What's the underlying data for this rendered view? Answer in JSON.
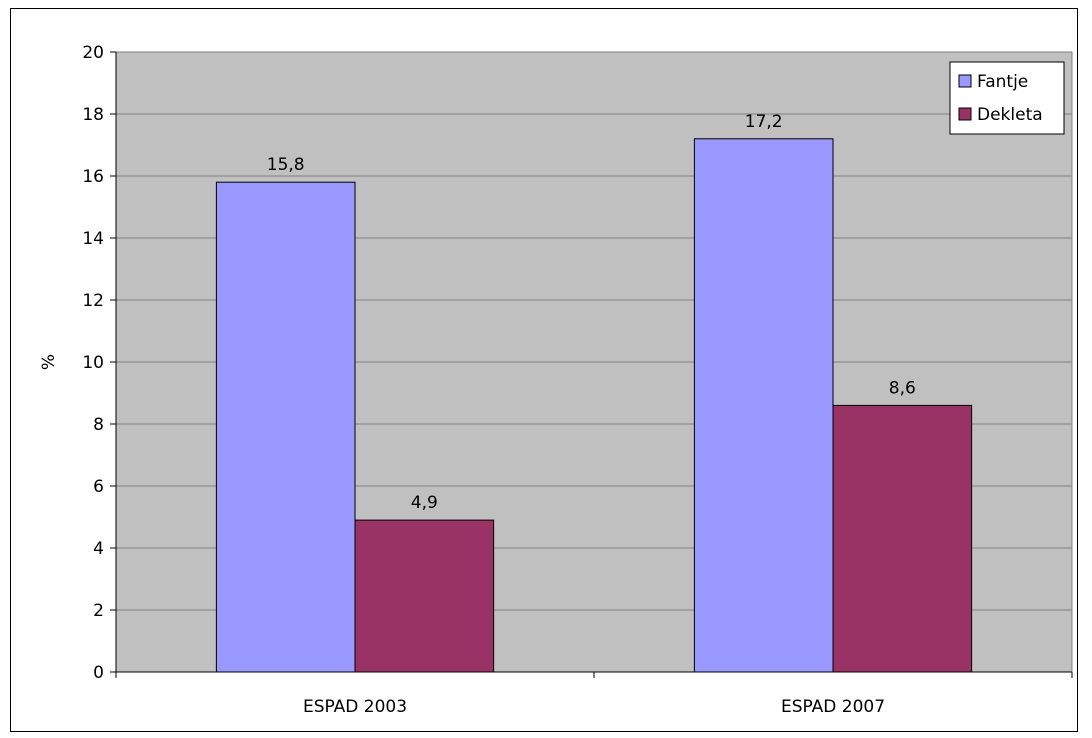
{
  "chart_data": {
    "type": "bar",
    "categories": [
      "ESPAD 2003",
      "ESPAD 2007"
    ],
    "series": [
      {
        "name": "Fantje",
        "values": [
          15.8,
          17.2
        ],
        "labels": [
          "15,8",
          "17,2"
        ],
        "color": "#9999ff"
      },
      {
        "name": "Dekleta",
        "values": [
          4.9,
          8.6
        ],
        "labels": [
          "4,9",
          "8,6"
        ],
        "color": "#993366"
      }
    ],
    "title": "",
    "xlabel": "",
    "ylabel": "%",
    "ylim": [
      0,
      20
    ],
    "yticks": [
      0,
      2,
      4,
      6,
      8,
      10,
      12,
      14,
      16,
      18,
      20
    ],
    "ytick_labels": [
      "0",
      "2",
      "4",
      "6",
      "8",
      "10",
      "12",
      "14",
      "16",
      "18",
      "20"
    ],
    "grid": true,
    "plot_background": "#c0c0c0",
    "legend_position": "top-right"
  }
}
